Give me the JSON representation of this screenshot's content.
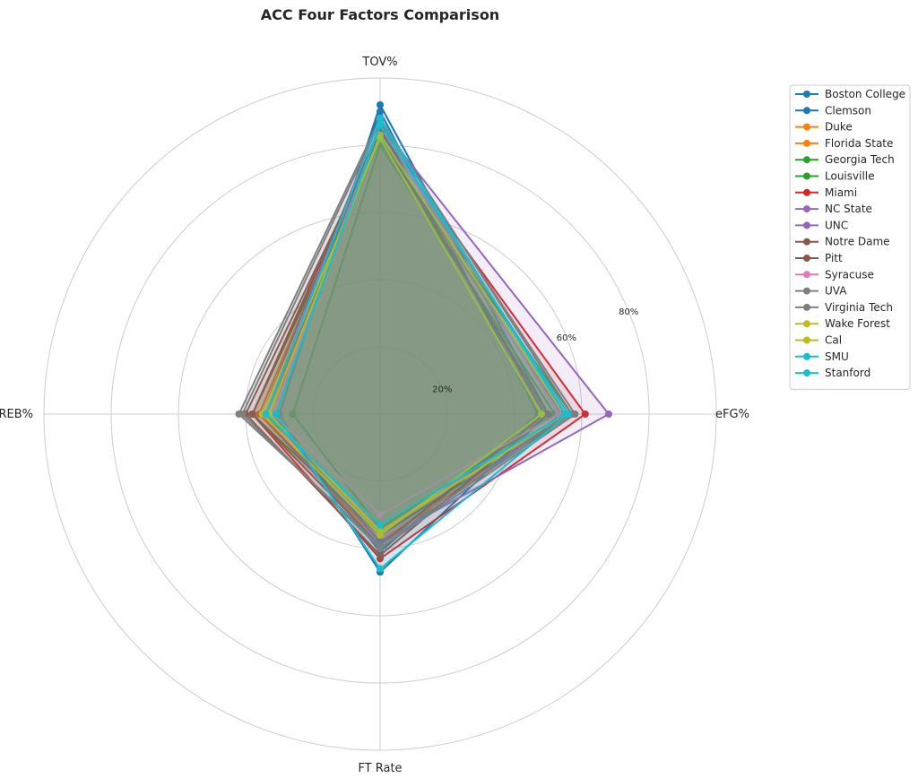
{
  "chart_data": {
    "type": "radar",
    "title": "ACC Four Factors Comparison",
    "axes": [
      "eFG%",
      "TOV%",
      "OREB%",
      "FT Rate"
    ],
    "rlim": [
      0,
      100
    ],
    "rticks": [
      20,
      40,
      60,
      80,
      100
    ],
    "rtick_labels": [
      "20%",
      "",
      "60%",
      "80%",
      ""
    ],
    "legend_position": "right",
    "grid": true,
    "series": [
      {
        "name": "Boston College",
        "color": "#1f77b4",
        "values": [
          47,
          90,
          32,
          41
        ]
      },
      {
        "name": "Clemson",
        "color": "#1f77b4",
        "values": [
          50,
          92,
          30,
          47
        ]
      },
      {
        "name": "Duke",
        "color": "#ff7f0e",
        "values": [
          56,
          85,
          36,
          38
        ]
      },
      {
        "name": "Florida State",
        "color": "#ff7f0e",
        "values": [
          54,
          82,
          34,
          40
        ]
      },
      {
        "name": "Georgia Tech",
        "color": "#2ca02c",
        "values": [
          52,
          80,
          26,
          34
        ]
      },
      {
        "name": "Louisville",
        "color": "#2ca02c",
        "values": [
          57,
          81,
          38,
          36
        ]
      },
      {
        "name": "Miami",
        "color": "#d62728",
        "values": [
          61,
          84,
          38,
          43
        ]
      },
      {
        "name": "NC State",
        "color": "#9467bd",
        "values": [
          68,
          86,
          33,
          38
        ]
      },
      {
        "name": "UNC",
        "color": "#9467bd",
        "values": [
          55,
          88,
          35,
          40
        ]
      },
      {
        "name": "Notre Dame",
        "color": "#8c564b",
        "values": [
          50,
          83,
          40,
          42
        ]
      },
      {
        "name": "Pitt",
        "color": "#8c564b",
        "values": [
          49,
          85,
          38,
          39
        ]
      },
      {
        "name": "Syracuse",
        "color": "#e377c2",
        "values": [
          53,
          86,
          32,
          30
        ]
      },
      {
        "name": "UVA",
        "color": "#7f7f7f",
        "values": [
          57,
          88,
          42,
          39
        ]
      },
      {
        "name": "Virginia Tech",
        "color": "#7f7f7f",
        "values": [
          58,
          87,
          41,
          40
        ]
      },
      {
        "name": "Wake Forest",
        "color": "#bcbd22",
        "values": [
          48,
          82,
          35,
          36
        ]
      },
      {
        "name": "Cal",
        "color": "#bcbd22",
        "values": [
          55,
          83,
          33,
          35
        ]
      },
      {
        "name": "SMU",
        "color": "#17becf",
        "values": [
          56,
          86,
          31,
          46
        ]
      },
      {
        "name": "Stanford",
        "color": "#17becf",
        "values": [
          55,
          88,
          34,
          33
        ]
      }
    ]
  }
}
